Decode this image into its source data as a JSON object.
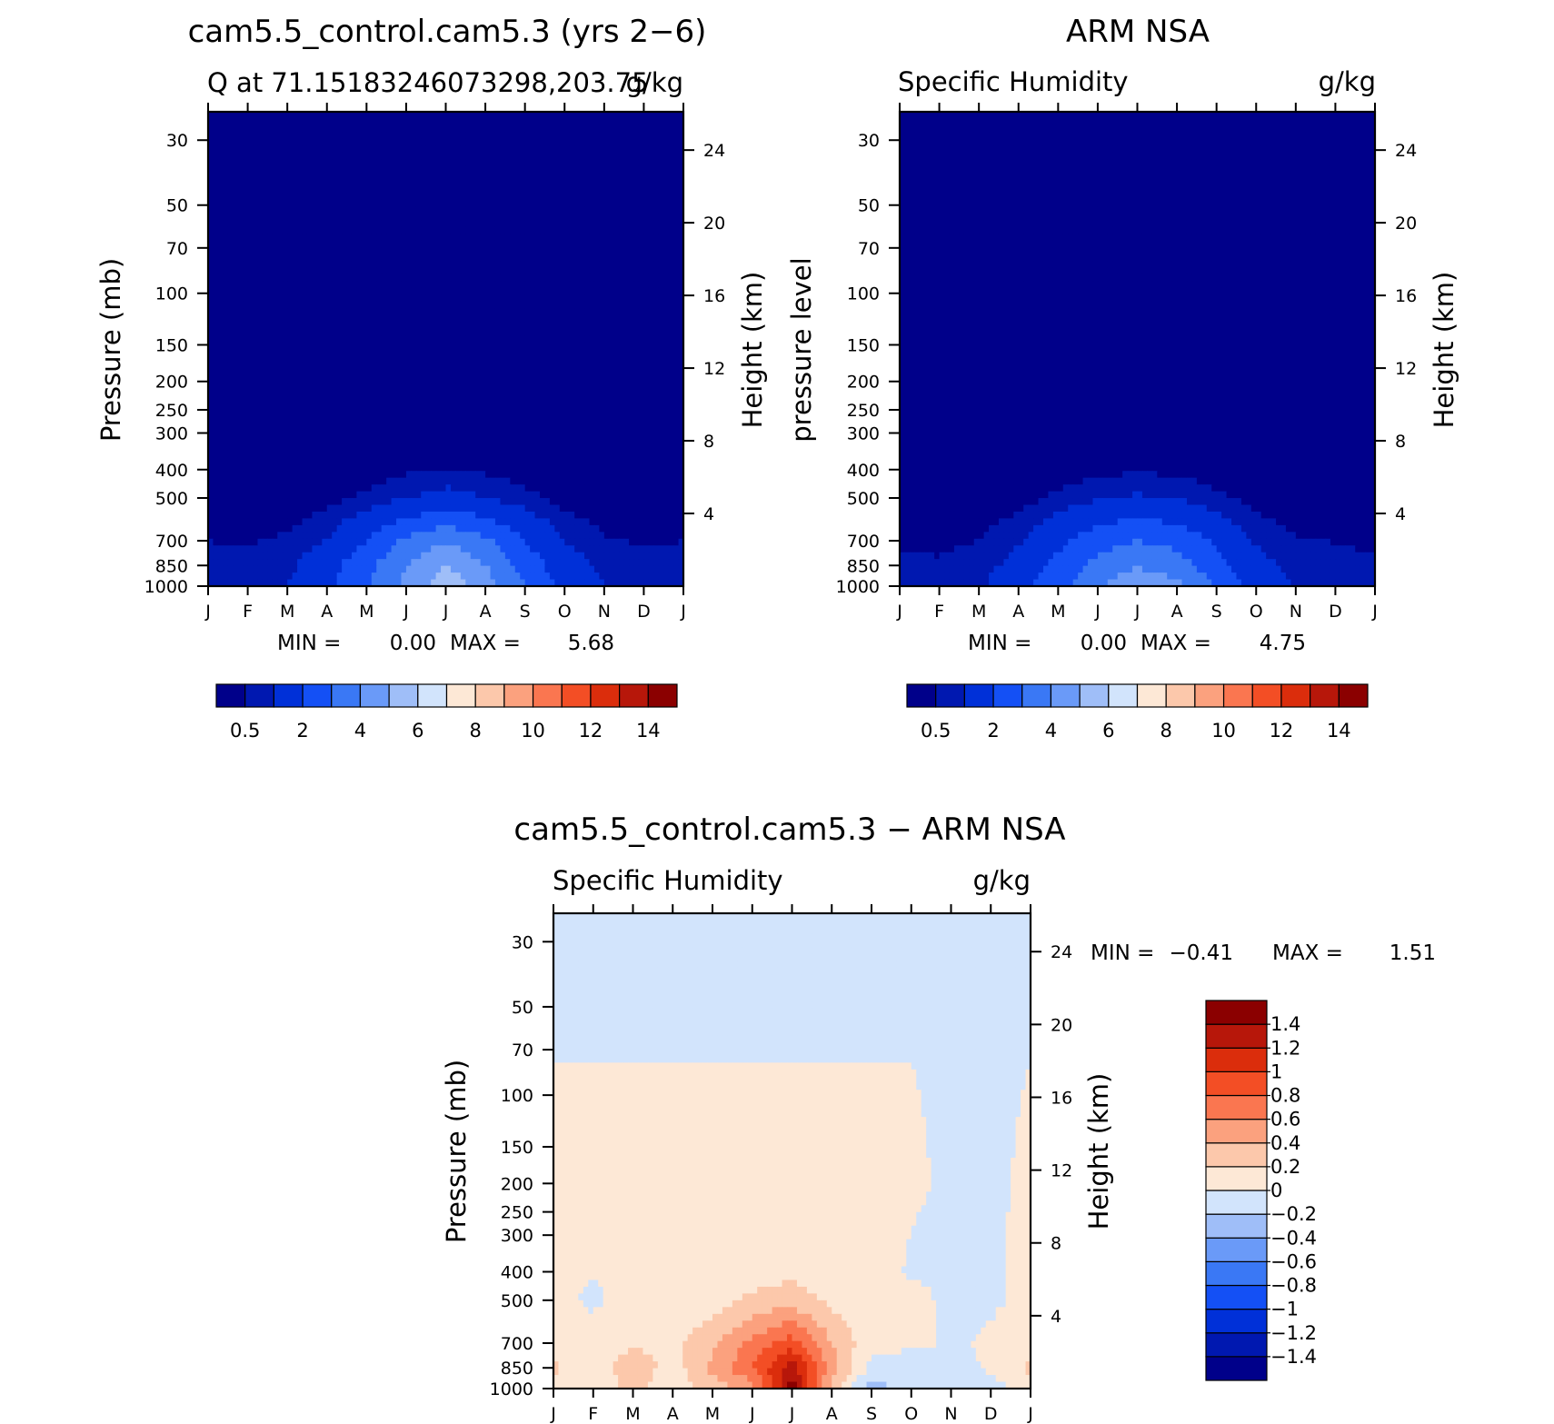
{
  "panels": [
    {
      "id": "model",
      "title": "cam5.5_control.cam5.3 (yrs 2−6)",
      "subtitle_left": "Q at 71.15183246073298,203.75",
      "subtitle_right": "g/kg",
      "ylabel_left": "Pressure (mb)",
      "ylabel_right": "Height (km)",
      "min_label": "MIN =",
      "min_value": "0.00",
      "max_label": "MAX =",
      "max_value": "5.68"
    },
    {
      "id": "obs",
      "title": "ARM NSA",
      "subtitle_left": "Specific Humidity",
      "subtitle_right": "g/kg",
      "ylabel_left": "pressure level",
      "ylabel_right": "Height (km)",
      "min_label": "MIN =",
      "min_value": "0.00",
      "max_label": "MAX =",
      "max_value": "4.75"
    },
    {
      "id": "diff",
      "title": "cam5.5_control.cam5.3 − ARM NSA",
      "subtitle_left": "Specific Humidity",
      "subtitle_right": "g/kg",
      "ylabel_left": "Pressure (mb)",
      "ylabel_right": "Height (km)",
      "min_label": "MIN =",
      "min_value": "−0.41",
      "max_label": "MAX =",
      "max_value": "1.51"
    }
  ],
  "chart_data": [
    {
      "type": "heatmap",
      "title": "cam5.5_control.cam5.3 (yrs 2−6)",
      "subtitle": "Q at 71.15183246073298,203.75",
      "units": "g/kg",
      "xlabel": "",
      "x_ticks": [
        "J",
        "F",
        "M",
        "A",
        "M",
        "J",
        "J",
        "A",
        "S",
        "O",
        "N",
        "D",
        "J"
      ],
      "ylabel": "Pressure (mb)",
      "y_ticks": [
        30,
        50,
        70,
        100,
        150,
        200,
        250,
        300,
        400,
        500,
        700,
        850,
        1000
      ],
      "y_scale": "log",
      "y_reversed": true,
      "ylim": [
        1000,
        24
      ],
      "y2label": "Height (km)",
      "y2_ticks": [
        4,
        8,
        12,
        16,
        20,
        24
      ],
      "months": [
        "Jan",
        "Feb",
        "Mar",
        "Apr",
        "May",
        "Jun",
        "Jul",
        "Aug",
        "Sep",
        "Oct",
        "Nov",
        "Dec",
        "Jan"
      ],
      "levels": [
        0.5,
        1,
        2,
        3,
        4,
        5,
        6,
        7,
        8,
        9,
        10,
        11,
        12,
        13,
        14
      ],
      "colorbar_labels": [
        "0.5",
        "2",
        "4",
        "6",
        "8",
        "10",
        "12",
        "14"
      ],
      "colors": [
        "#00008a",
        "#0018b0",
        "#0030d8",
        "#1450f5",
        "#3a78f5",
        "#6a9af8",
        "#9fbef8",
        "#d2e4fc",
        "#fde8d6",
        "#fcc8ab",
        "#fba17e",
        "#fa7650",
        "#f34e25",
        "#db2d0c",
        "#b7170a",
        "#8b0000"
      ],
      "stats": {
        "min": 0.0,
        "max": 5.68
      },
      "series": [
        {
          "p": 1000,
          "values": [
            0.7,
            0.6,
            1.0,
            1.8,
            2.9,
            4.3,
            5.68,
            4.5,
            3.1,
            1.7,
            1.0,
            0.8,
            0.7
          ]
        },
        {
          "p": 850,
          "values": [
            0.6,
            0.6,
            0.8,
            1.6,
            2.7,
            4.0,
            5.0,
            4.0,
            2.6,
            1.4,
            0.8,
            0.6,
            0.6
          ]
        },
        {
          "p": 700,
          "values": [
            0.5,
            0.45,
            0.6,
            1.0,
            2.0,
            3.2,
            3.9,
            3.2,
            2.0,
            1.0,
            0.55,
            0.45,
            0.5
          ]
        },
        {
          "p": 500,
          "values": [
            0.08,
            0.1,
            0.15,
            0.35,
            0.6,
            0.95,
            1.3,
            1.0,
            0.65,
            0.3,
            0.15,
            0.1,
            0.08
          ]
        },
        {
          "p": 400,
          "values": [
            0.03,
            0.04,
            0.06,
            0.12,
            0.25,
            0.4,
            0.5,
            0.4,
            0.25,
            0.12,
            0.05,
            0.04,
            0.03
          ]
        },
        {
          "p": 30,
          "values": [
            0.01,
            0.01,
            0.01,
            0.01,
            0.01,
            0.01,
            0.01,
            0.01,
            0.01,
            0.01,
            0.01,
            0.01,
            0.01
          ]
        }
      ]
    },
    {
      "type": "heatmap",
      "title": "ARM NSA",
      "subtitle": "Specific Humidity",
      "units": "g/kg",
      "xlabel": "",
      "x_ticks": [
        "J",
        "F",
        "M",
        "A",
        "M",
        "J",
        "J",
        "A",
        "S",
        "O",
        "N",
        "D",
        "J"
      ],
      "ylabel": "pressure level",
      "y_ticks": [
        30,
        50,
        70,
        100,
        150,
        200,
        250,
        300,
        400,
        500,
        700,
        850,
        1000
      ],
      "y_scale": "log",
      "y_reversed": true,
      "ylim": [
        1000,
        24
      ],
      "y2label": "Height (km)",
      "y2_ticks": [
        4,
        8,
        12,
        16,
        20,
        24
      ],
      "months": [
        "Jan",
        "Feb",
        "Mar",
        "Apr",
        "May",
        "Jun",
        "Jul",
        "Aug",
        "Sep",
        "Oct",
        "Nov",
        "Dec",
        "Jan"
      ],
      "levels": [
        0.5,
        1,
        2,
        3,
        4,
        5,
        6,
        7,
        8,
        9,
        10,
        11,
        12,
        13,
        14
      ],
      "colorbar_labels": [
        "0.5",
        "2",
        "4",
        "6",
        "8",
        "10",
        "12",
        "14"
      ],
      "colors": [
        "#00008a",
        "#0018b0",
        "#0030d8",
        "#1450f5",
        "#3a78f5",
        "#6a9af8",
        "#9fbef8",
        "#d2e4fc",
        "#fde8d6",
        "#fcc8ab",
        "#fba17e",
        "#fa7650",
        "#f34e25",
        "#db2d0c",
        "#b7170a",
        "#8b0000"
      ],
      "stats": {
        "min": 0.0,
        "max": 4.75
      },
      "series": [
        {
          "p": 1000,
          "values": [
            0.7,
            0.7,
            0.9,
            1.6,
            2.7,
            3.9,
            4.75,
            4.3,
            2.9,
            1.6,
            0.95,
            0.75,
            0.7
          ]
        },
        {
          "p": 850,
          "values": [
            0.55,
            0.55,
            0.7,
            1.3,
            2.3,
            3.3,
            3.9,
            3.5,
            2.4,
            1.3,
            0.75,
            0.6,
            0.55
          ]
        },
        {
          "p": 700,
          "values": [
            0.45,
            0.42,
            0.5,
            0.9,
            1.7,
            2.6,
            3.0,
            2.7,
            1.8,
            0.9,
            0.55,
            0.48,
            0.45
          ]
        },
        {
          "p": 500,
          "values": [
            0.1,
            0.1,
            0.15,
            0.3,
            0.6,
            0.9,
            1.1,
            0.95,
            0.6,
            0.3,
            0.15,
            0.1,
            0.1
          ]
        },
        {
          "p": 400,
          "values": [
            0.04,
            0.04,
            0.06,
            0.1,
            0.22,
            0.35,
            0.42,
            0.36,
            0.22,
            0.1,
            0.05,
            0.04,
            0.04
          ]
        },
        {
          "p": 30,
          "values": [
            0.01,
            0.01,
            0.01,
            0.01,
            0.01,
            0.01,
            0.01,
            0.01,
            0.01,
            0.01,
            0.01,
            0.01,
            0.01
          ]
        }
      ]
    },
    {
      "type": "heatmap",
      "title": "cam5.5_control.cam5.3 − ARM NSA",
      "subtitle": "Specific Humidity",
      "units": "g/kg",
      "xlabel": "",
      "x_ticks": [
        "J",
        "F",
        "M",
        "A",
        "M",
        "J",
        "J",
        "A",
        "S",
        "O",
        "N",
        "D",
        "J"
      ],
      "ylabel": "Pressure (mb)",
      "y_ticks": [
        30,
        50,
        70,
        100,
        150,
        200,
        250,
        300,
        400,
        500,
        700,
        850,
        1000
      ],
      "y_scale": "log",
      "y_reversed": true,
      "ylim": [
        1000,
        24
      ],
      "y2label": "Height (km)",
      "y2_ticks": [
        4,
        8,
        12,
        16,
        20,
        24
      ],
      "months": [
        "Jan",
        "Feb",
        "Mar",
        "Apr",
        "May",
        "Jun",
        "Jul",
        "Aug",
        "Sep",
        "Oct",
        "Nov",
        "Dec",
        "Jan"
      ],
      "levels": [
        -1.4,
        -1.2,
        -1,
        -0.8,
        -0.6,
        -0.4,
        -0.2,
        0,
        0.2,
        0.4,
        0.6,
        0.8,
        1,
        1.2,
        1.4
      ],
      "colorbar_labels": [
        "−1.4",
        "−1.2",
        "−1",
        "−0.8",
        "−0.6",
        "−0.4",
        "−0.2",
        "0",
        "0.2",
        "0.4",
        "0.6",
        "0.8",
        "1",
        "1.2",
        "1.4"
      ],
      "colors": [
        "#00008a",
        "#0018b0",
        "#0030d8",
        "#1450f5",
        "#3a78f5",
        "#6a9af8",
        "#9fbef8",
        "#d2e4fc",
        "#fde8d6",
        "#fcc8ab",
        "#fba17e",
        "#fa7650",
        "#f34e25",
        "#db2d0c",
        "#b7170a",
        "#8b0000"
      ],
      "stats": {
        "min": -0.41,
        "max": 1.51
      },
      "series": [
        {
          "p": 1000,
          "values": [
            0.05,
            0.02,
            0.3,
            0.04,
            0.3,
            0.5,
            1.51,
            0.3,
            -0.35,
            -0.05,
            -0.1,
            -0.05,
            0.05
          ]
        },
        {
          "p": 850,
          "values": [
            0.25,
            0.05,
            0.35,
            0.1,
            0.45,
            0.8,
            1.3,
            0.5,
            -0.05,
            -0.1,
            -0.05,
            0.02,
            0.25
          ]
        },
        {
          "p": 700,
          "values": [
            0.1,
            0.05,
            0.15,
            0.15,
            0.35,
            0.65,
            0.9,
            0.4,
            0.05,
            0.04,
            -0.02,
            0.02,
            0.1
          ]
        },
        {
          "p": 500,
          "values": [
            0.03,
            -0.02,
            0.04,
            0.05,
            0.1,
            0.25,
            0.3,
            0.15,
            0.05,
            0.03,
            -0.02,
            -0.02,
            0.03
          ]
        },
        {
          "p": 400,
          "values": [
            0.02,
            0.01,
            0.02,
            0.03,
            0.05,
            0.1,
            0.15,
            0.08,
            0.04,
            -0.01,
            -0.02,
            -0.01,
            0.02
          ]
        },
        {
          "p": 200,
          "values": [
            0.01,
            0.01,
            0.01,
            0.01,
            0.01,
            0.01,
            0.01,
            0.01,
            0.01,
            0.01,
            -0.01,
            -0.01,
            0.01
          ]
        },
        {
          "p": 30,
          "values": [
            -0.01,
            -0.01,
            -0.01,
            -0.01,
            -0.01,
            -0.01,
            -0.01,
            -0.01,
            -0.01,
            -0.01,
            -0.01,
            -0.01,
            -0.01
          ]
        }
      ]
    }
  ]
}
